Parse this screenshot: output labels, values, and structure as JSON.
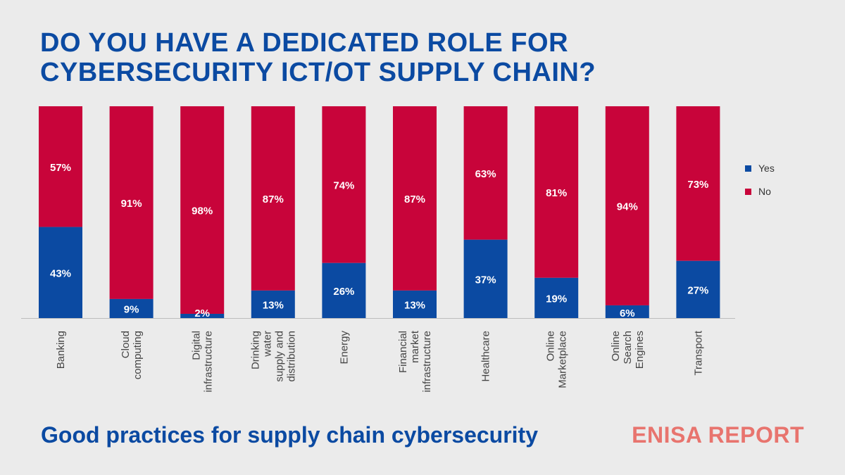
{
  "title_lines": [
    "DO YOU HAVE A DEDICATED ROLE FOR",
    "CYBERSECURITY ICT/OT SUPPLY CHAIN?"
  ],
  "footer": {
    "left": "Good practices for supply chain cybersecurity",
    "right": "ENISA REPORT"
  },
  "colors": {
    "yes": "#0b4aa2",
    "no": "#c8043a",
    "title": "#0b4aa2",
    "accent": "#e8746e"
  },
  "chart_data": {
    "type": "bar",
    "stacked": true,
    "percent": true,
    "categories": [
      [
        "Banking"
      ],
      [
        "Cloud",
        "computing"
      ],
      [
        "Digital",
        "infrastructure"
      ],
      [
        "Drinking",
        "water",
        "supply and",
        "distribution"
      ],
      [
        "Energy"
      ],
      [
        "Financial",
        "market",
        "infrastructure"
      ],
      [
        "Healthcare"
      ],
      [
        "Online",
        "Marketplace"
      ],
      [
        "Online",
        "Search",
        "Engines"
      ],
      [
        "Transport"
      ]
    ],
    "series": [
      {
        "name": "Yes",
        "values": [
          43,
          9,
          2,
          13,
          26,
          13,
          37,
          19,
          6,
          27
        ],
        "color": "#0b4aa2"
      },
      {
        "name": "No",
        "values": [
          57,
          91,
          98,
          87,
          74,
          87,
          63,
          81,
          94,
          73
        ],
        "color": "#c8043a"
      }
    ],
    "ylim": [
      0,
      100
    ],
    "grid": false,
    "legend": "right"
  }
}
